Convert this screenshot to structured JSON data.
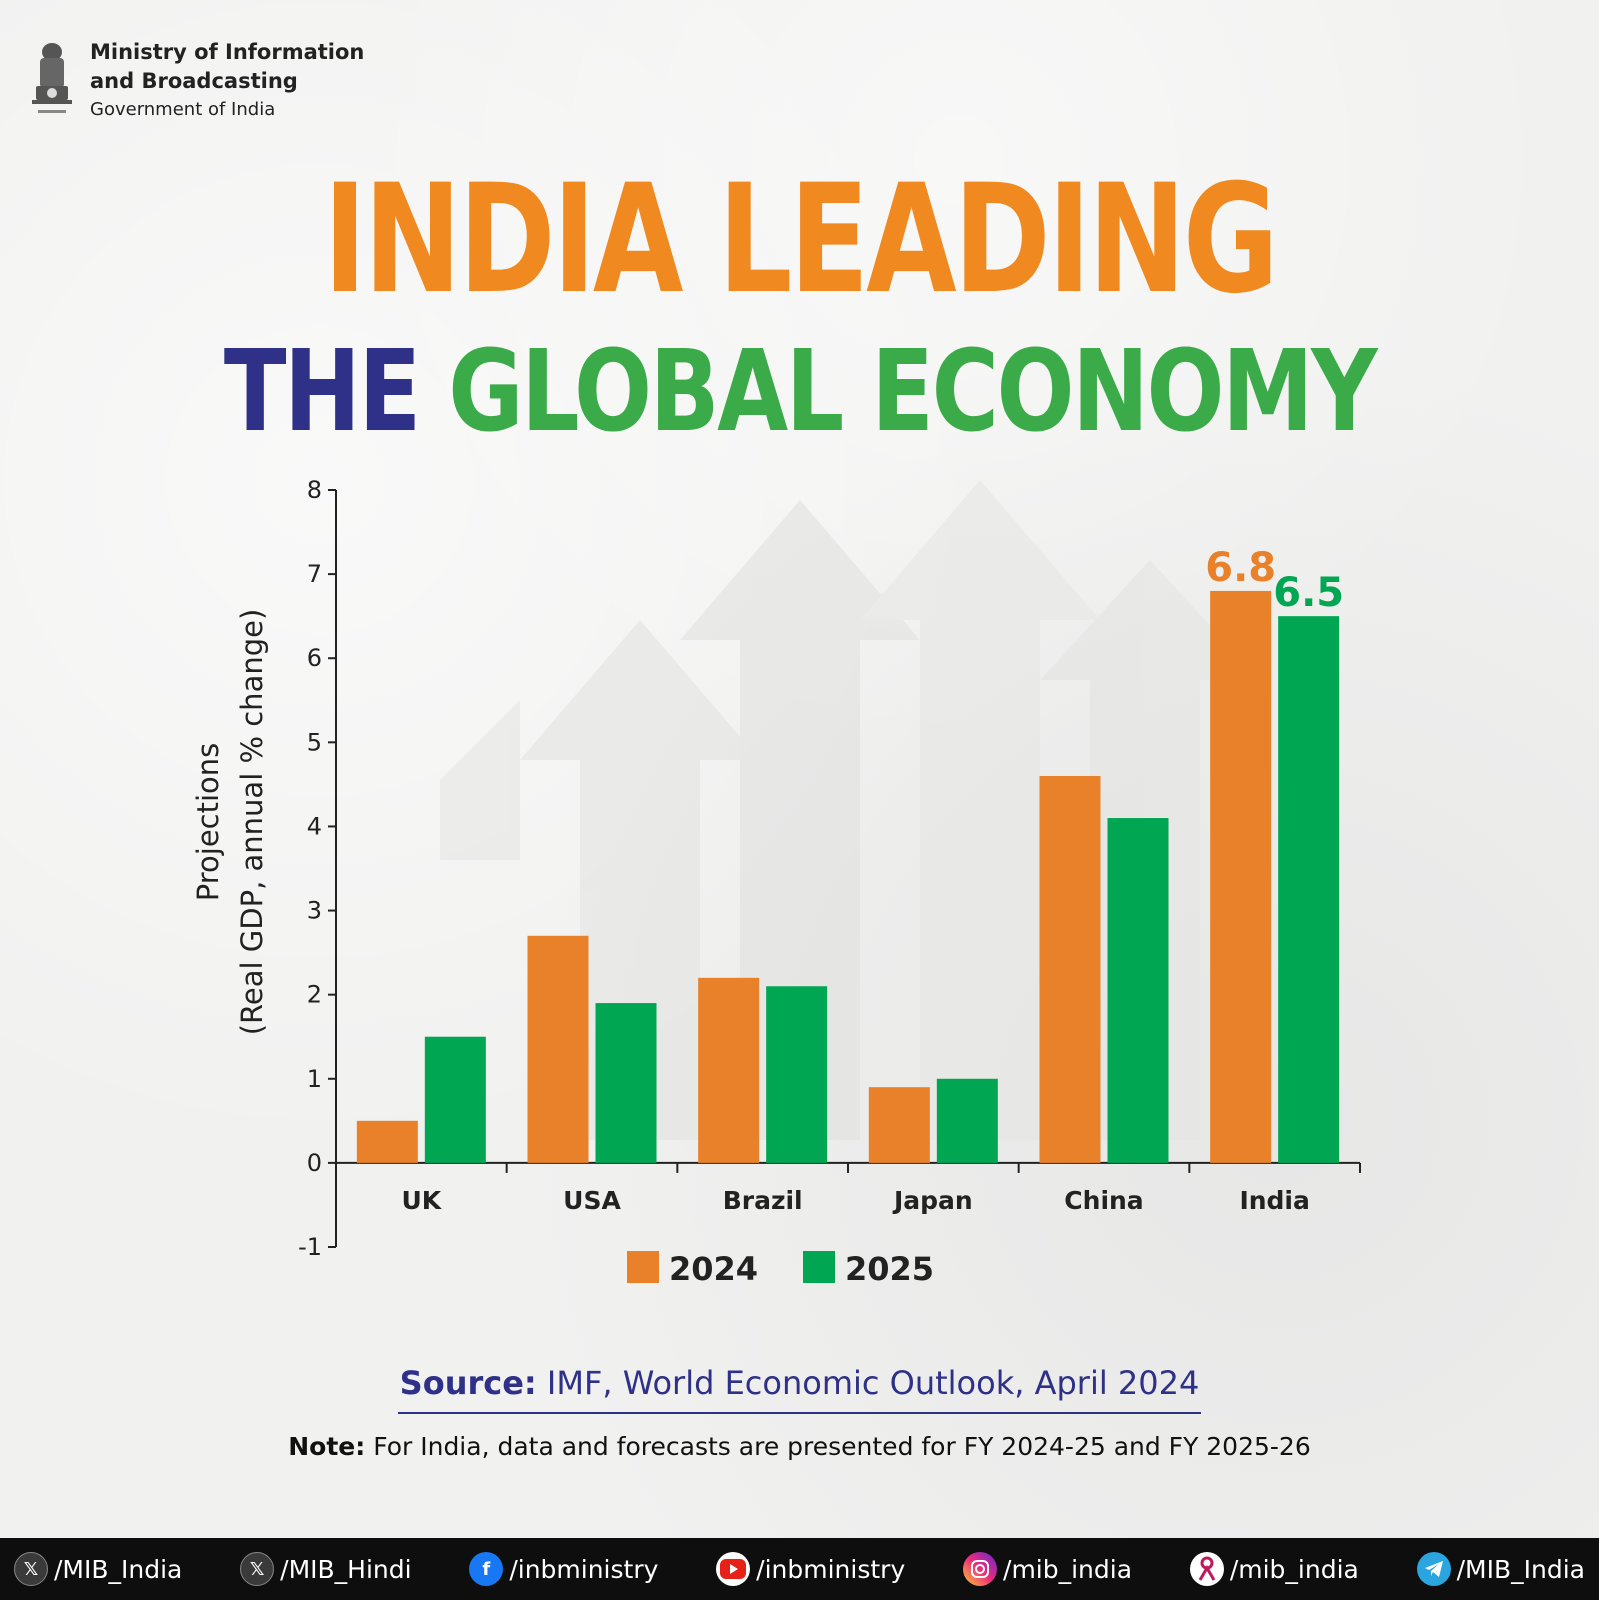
{
  "header": {
    "ministry_line1": "Ministry of Information",
    "ministry_line2": "and Broadcasting",
    "ministry_line3": "Government of India"
  },
  "title": {
    "line1": "INDIA LEADING",
    "line2_part1": "THE",
    "line2_part2": "GLOBAL ECONOMY"
  },
  "colors": {
    "orange": "#e8812a",
    "green": "#00a651",
    "navy": "#2e3187"
  },
  "chart_data": {
    "type": "bar",
    "categories": [
      "UK",
      "USA",
      "Brazil",
      "Japan",
      "China",
      "India"
    ],
    "series": [
      {
        "name": "2024",
        "values": [
          0.5,
          2.7,
          2.2,
          0.9,
          4.6,
          6.8
        ],
        "color": "#e8812a"
      },
      {
        "name": "2025",
        "values": [
          1.5,
          1.9,
          2.1,
          1.0,
          4.1,
          6.5
        ],
        "color": "#00a651"
      }
    ],
    "ylabel_line1": "Projections",
    "ylabel_line2": "(Real GDP, annual % change)",
    "ylim": [
      -1,
      8
    ],
    "yticks": [
      "8",
      "7",
      "6",
      "5",
      "4",
      "3",
      "2",
      "1",
      "0",
      "-1"
    ],
    "data_labels": {
      "India_2024": "6.8",
      "India_2025": "6.5"
    },
    "legend_position": "bottom-center",
    "grid": false
  },
  "source": {
    "label": "Source:",
    "text": " IMF, World Economic Outlook, April 2024"
  },
  "note": {
    "label": "Note:",
    "text": "  For India, data and forecasts are presented for FY 2024-25 and FY 2025-26"
  },
  "footer": {
    "items": [
      {
        "icon": "x-icon",
        "handle": "/MIB_India"
      },
      {
        "icon": "x-icon",
        "handle": "/MIB_Hindi"
      },
      {
        "icon": "facebook-icon",
        "handle": "/inbministry"
      },
      {
        "icon": "youtube-icon",
        "handle": "/inbministry"
      },
      {
        "icon": "instagram-icon",
        "handle": "/mib_india"
      },
      {
        "icon": "koo-icon",
        "handle": "/mib_india"
      },
      {
        "icon": "telegram-icon",
        "handle": "/MIB_India"
      }
    ]
  }
}
